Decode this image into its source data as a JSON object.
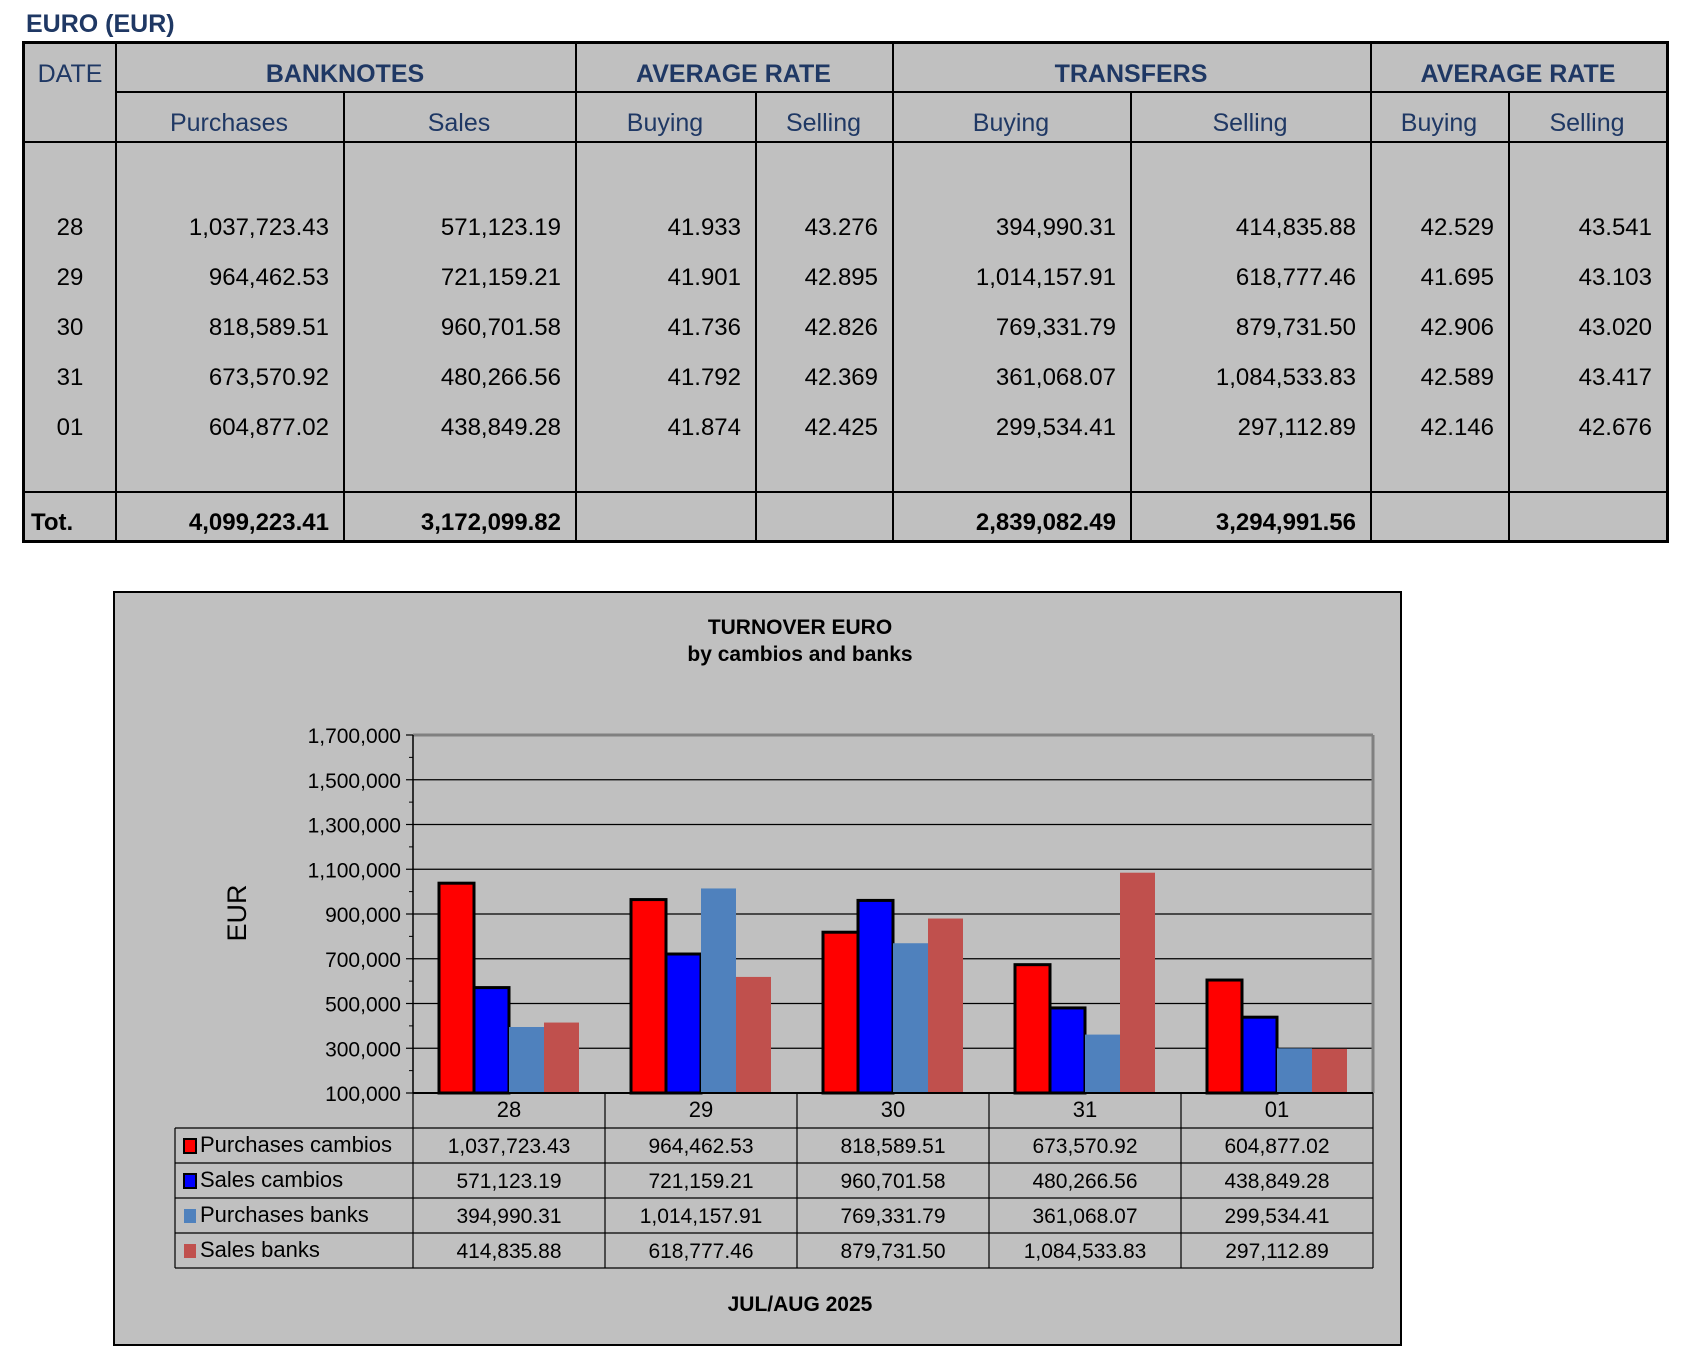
{
  "page_title": "EURO (EUR)",
  "table": {
    "date_header": "DATE",
    "group_headers": [
      "BANKNOTES",
      "AVERAGE RATE",
      "TRANSFERS",
      "AVERAGE RATE"
    ],
    "sub_headers": [
      "Purchases",
      "Sales",
      "Buying",
      "Selling",
      "Buying",
      "Selling",
      "Buying",
      "Selling"
    ],
    "rows": [
      {
        "date": "28",
        "values": [
          "1,037,723.43",
          "571,123.19",
          "41.933",
          "43.276",
          "394,990.31",
          "414,835.88",
          "42.529",
          "43.541"
        ]
      },
      {
        "date": "29",
        "values": [
          "964,462.53",
          "721,159.21",
          "41.901",
          "42.895",
          "1,014,157.91",
          "618,777.46",
          "41.695",
          "43.103"
        ]
      },
      {
        "date": "30",
        "values": [
          "818,589.51",
          "960,701.58",
          "41.736",
          "42.826",
          "769,331.79",
          "879,731.50",
          "42.906",
          "43.020"
        ]
      },
      {
        "date": "31",
        "values": [
          "673,570.92",
          "480,266.56",
          "41.792",
          "42.369",
          "361,068.07",
          "1,084,533.83",
          "42.589",
          "43.417"
        ]
      },
      {
        "date": "01",
        "values": [
          "604,877.02",
          "438,849.28",
          "41.874",
          "42.425",
          "299,534.41",
          "297,112.89",
          "42.146",
          "42.676"
        ]
      }
    ],
    "total_label": "Tot.",
    "totals": [
      "4,099,223.41",
      "3,172,099.82",
      "",
      "",
      "2,839,082.49",
      "3,294,991.56",
      "",
      ""
    ]
  },
  "chart_data": {
    "type": "bar",
    "title": "TURNOVER  EURO",
    "subtitle": "by cambios and banks",
    "ylabel": "EUR",
    "xlabel": "JUL/AUG 2025",
    "ylim": [
      100000,
      1700000
    ],
    "y_ticks": [
      "1,700,000",
      "1,500,000",
      "1,300,000",
      "1,100,000",
      "900,000",
      "700,000",
      "500,000",
      "300,000",
      "100,000"
    ],
    "categories": [
      "28",
      "29",
      "30",
      "31",
      "01"
    ],
    "grid": true,
    "legend": "data-table",
    "series": [
      {
        "name": "Purchases cambios",
        "color": "#ff0000",
        "values": [
          1037723.43,
          964462.53,
          818589.51,
          673570.92,
          604877.02
        ],
        "labels": [
          "1,037,723.43",
          "964,462.53",
          "818,589.51",
          "673,570.92",
          "604,877.02"
        ]
      },
      {
        "name": "Sales cambios",
        "color": "#0000ff",
        "values": [
          571123.19,
          721159.21,
          960701.58,
          480266.56,
          438849.28
        ],
        "labels": [
          "571,123.19",
          "721,159.21",
          "960,701.58",
          "480,266.56",
          "438,849.28"
        ]
      },
      {
        "name": "Purchases banks",
        "color": "#4f81bd",
        "values": [
          394990.31,
          1014157.91,
          769331.79,
          361068.07,
          299534.41
        ],
        "labels": [
          "394,990.31",
          "1,014,157.91",
          "769,331.79",
          "361,068.07",
          "299,534.41"
        ]
      },
      {
        "name": "Sales banks",
        "color": "#c0504d",
        "values": [
          414835.88,
          618777.46,
          879731.5,
          1084533.83,
          297112.89
        ],
        "labels": [
          "414,835.88",
          "618,777.46",
          "879,731.50",
          "1,084,533.83",
          "297,112.89"
        ]
      }
    ]
  }
}
